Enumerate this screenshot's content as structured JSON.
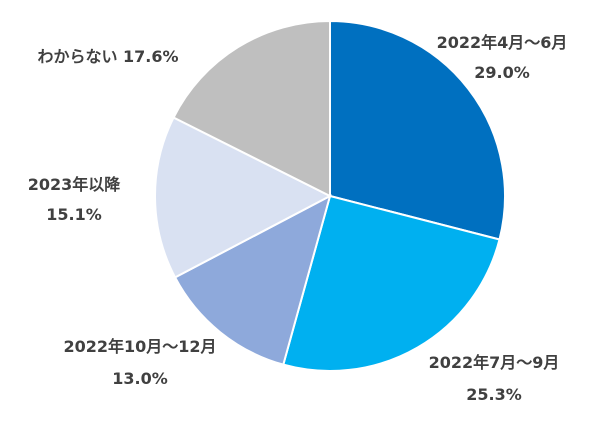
{
  "chart_data": {
    "type": "pie",
    "start_angle_deg": 0,
    "direction": "clockwise",
    "slices": [
      {
        "label": "2022年4月～6月",
        "value": 29.0,
        "value_text": "29.0%",
        "color": "#0070C0"
      },
      {
        "label": "2022年7月～9月",
        "value": 25.3,
        "value_text": "25.3%",
        "color": "#00B0F0"
      },
      {
        "label": "2022年10月～12月",
        "value": 13.0,
        "value_text": "13.0%",
        "color": "#8EA9DB"
      },
      {
        "label": "2023年以降",
        "value": 15.1,
        "value_text": "15.1%",
        "color": "#D9E1F2"
      },
      {
        "label": "わからない",
        "value": 17.6,
        "value_text": "17.6%",
        "color": "#BFBFBF"
      }
    ],
    "slice_border_color": "#ffffff"
  }
}
